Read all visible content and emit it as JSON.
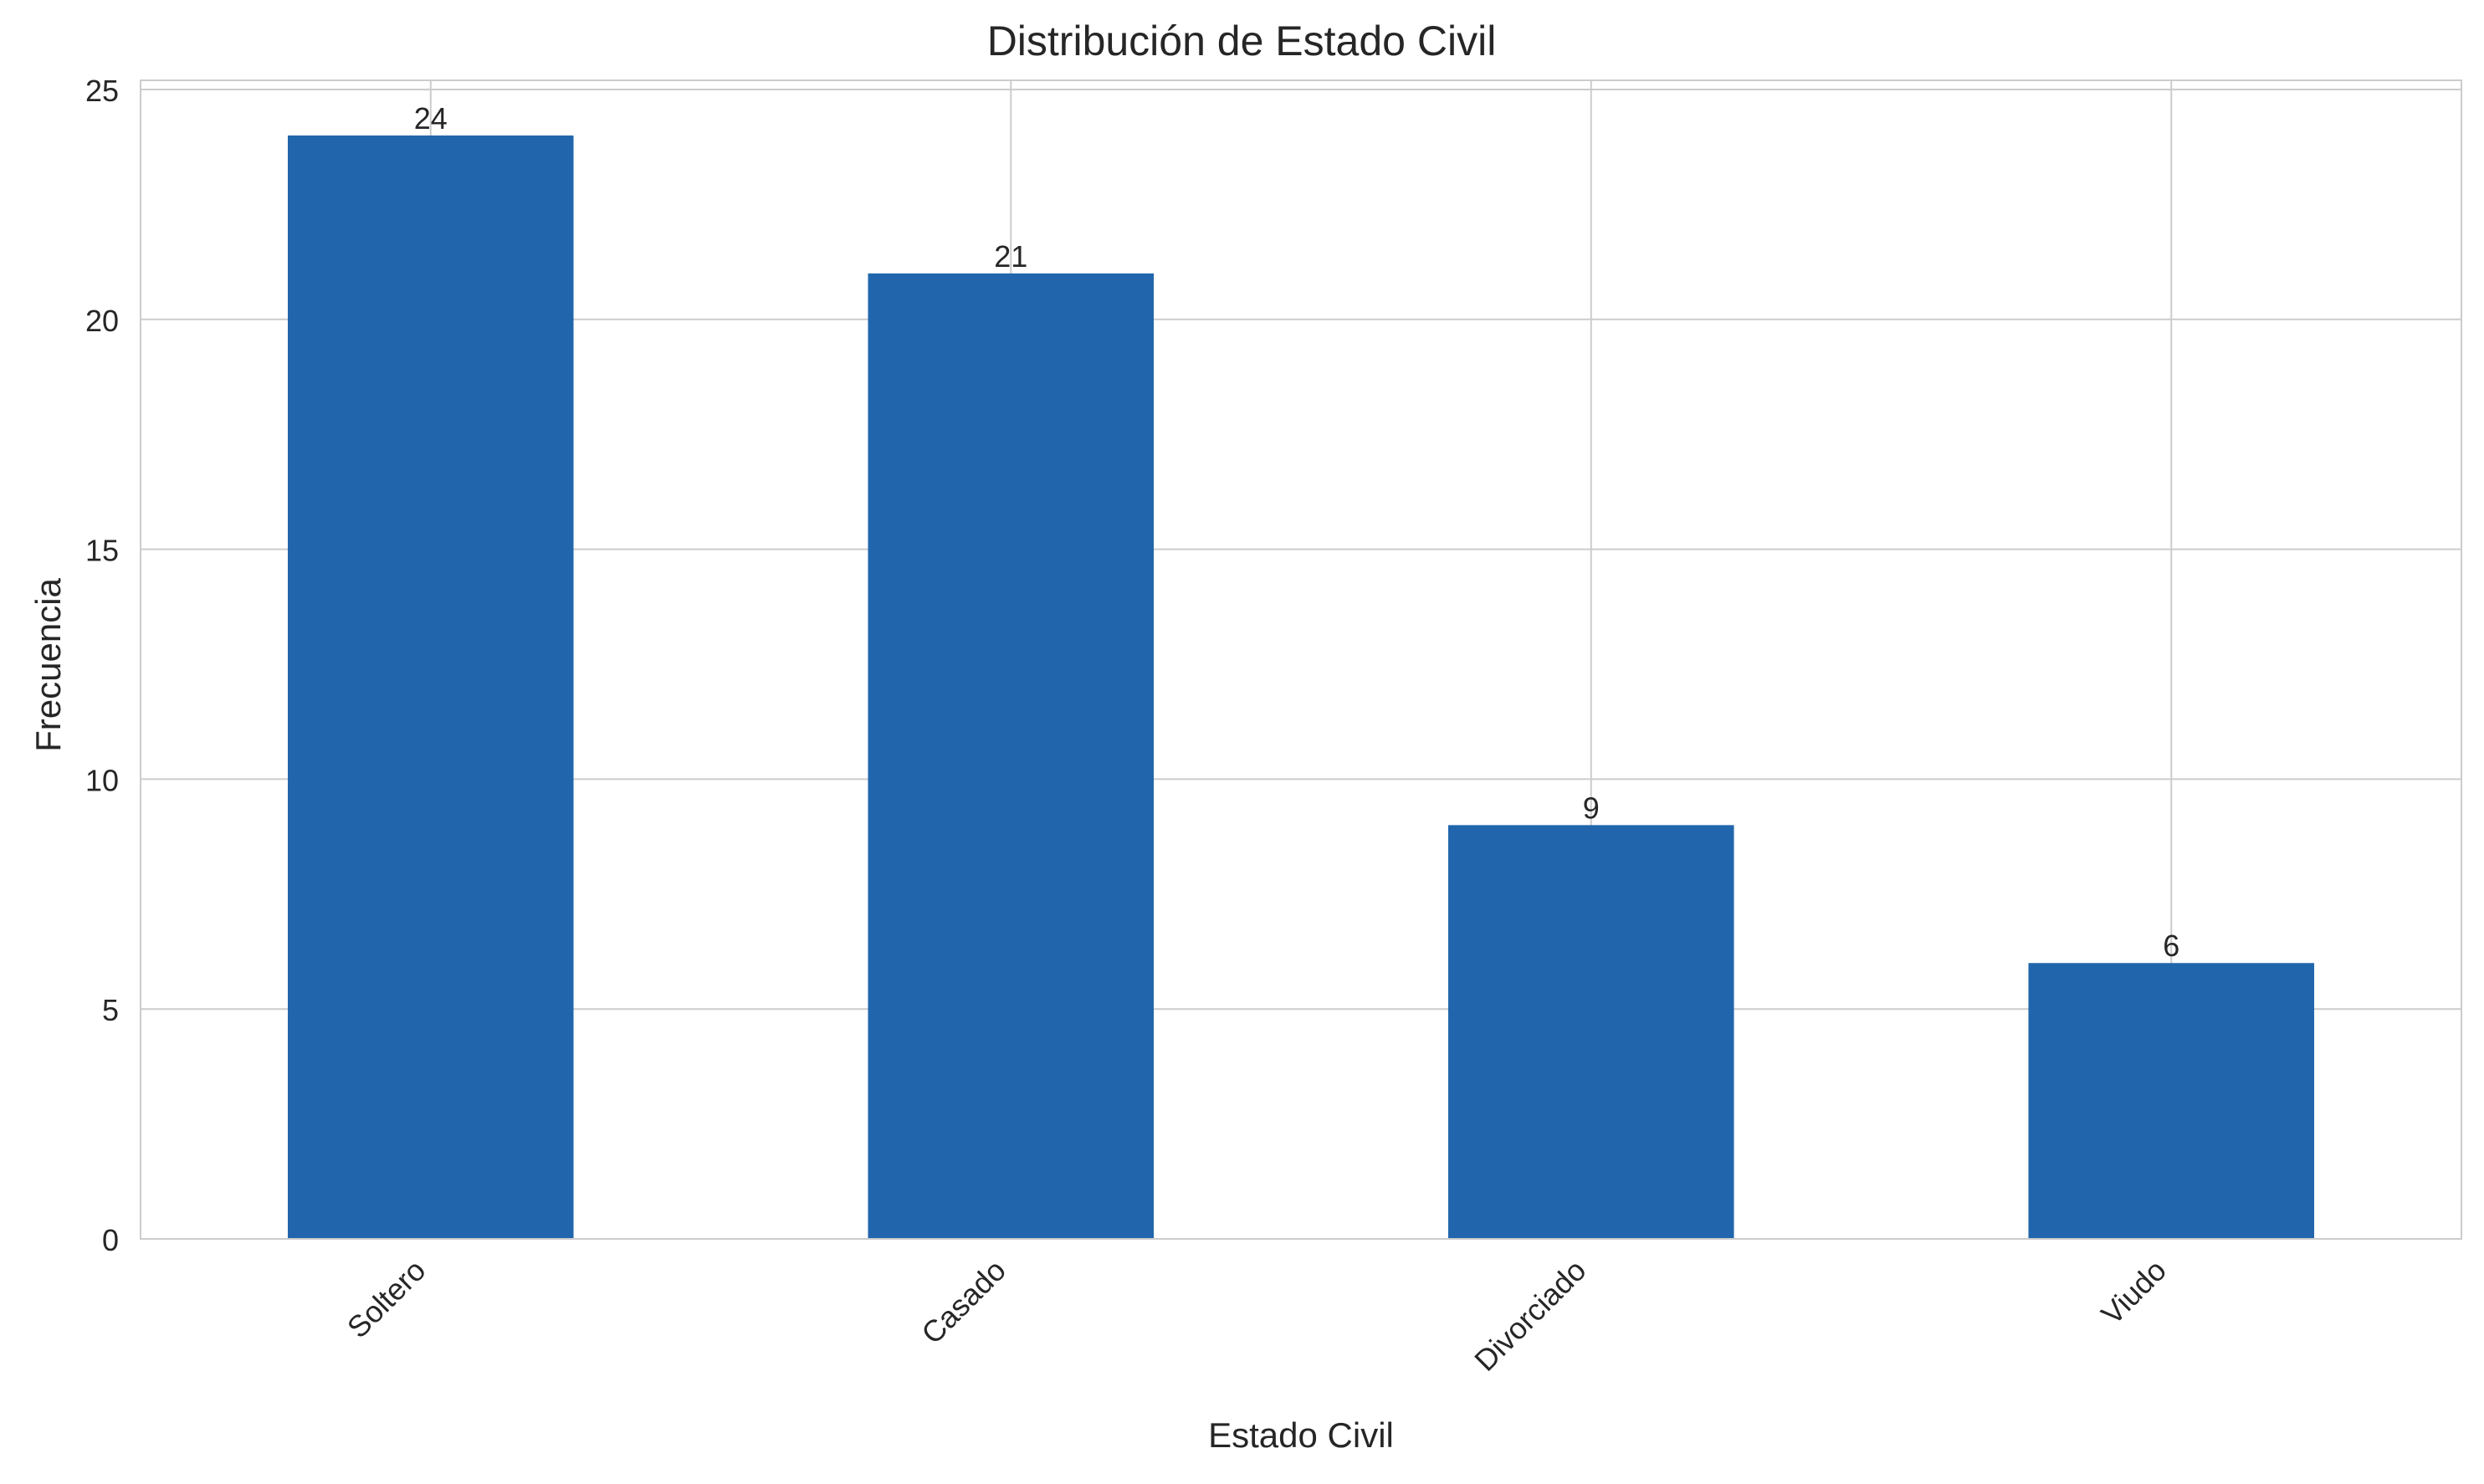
{
  "chart_data": {
    "type": "bar",
    "title": "Distribución de Estado Civil",
    "xlabel": "Estado Civil",
    "ylabel": "Frecuencia",
    "categories": [
      "Soltero",
      "Casado",
      "Divorciado",
      "Viudo"
    ],
    "values": [
      24,
      21,
      9,
      6
    ],
    "data_labels": [
      "24",
      "21",
      "9",
      "6"
    ],
    "ylim": [
      0,
      25.2
    ],
    "yticks": [
      0,
      5,
      10,
      15,
      20,
      25
    ],
    "ytick_labels": [
      "0",
      "5",
      "10",
      "15",
      "20",
      "25"
    ],
    "xtick_rotation_deg": -45,
    "grid": true,
    "legend": "none",
    "colors": {
      "bar": "#2166ac",
      "grid": "#cccccc",
      "frame": "#cccccc",
      "text": "#262626",
      "background": "#ffffff"
    }
  }
}
